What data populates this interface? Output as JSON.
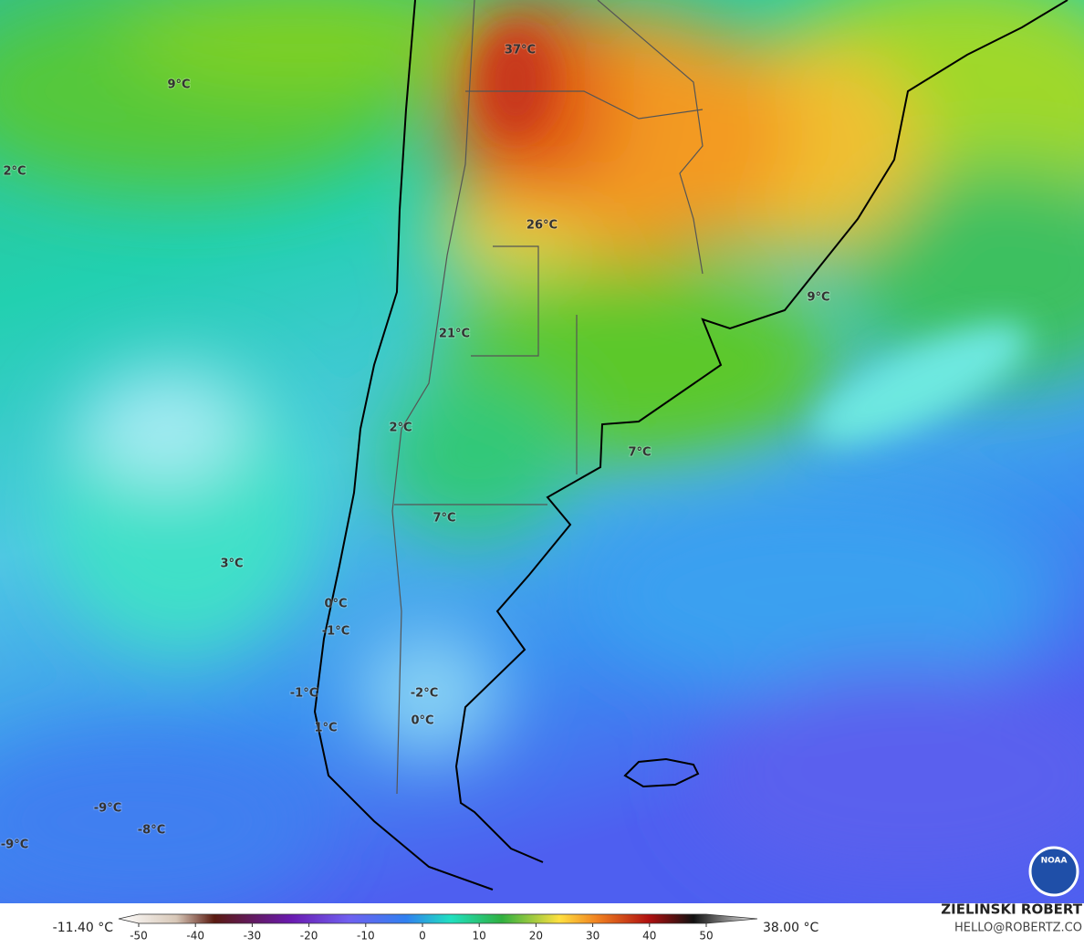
{
  "map_labels": [
    "37°C",
    "9°C",
    "2°C",
    "26°C",
    "21°C",
    "9°C",
    "2°C",
    "7°C",
    "7°C",
    "3°C",
    "0°C",
    "-1°C",
    "-1°C",
    "-2°C",
    "0°C",
    "1°C",
    "-9°C",
    "-8°C",
    "-9°C"
  ],
  "colorbar": {
    "min_label": "-11.40 °C",
    "max_label": "38.00 °C",
    "ticks": [
      -50,
      -40,
      -30,
      -20,
      -10,
      0,
      10,
      20,
      30,
      40,
      50
    ]
  },
  "credit": {
    "name": "ZIELINSKI ROBERT",
    "contact": "HELLO@ROBERTZ.CO"
  },
  "logo": "NOAA"
}
